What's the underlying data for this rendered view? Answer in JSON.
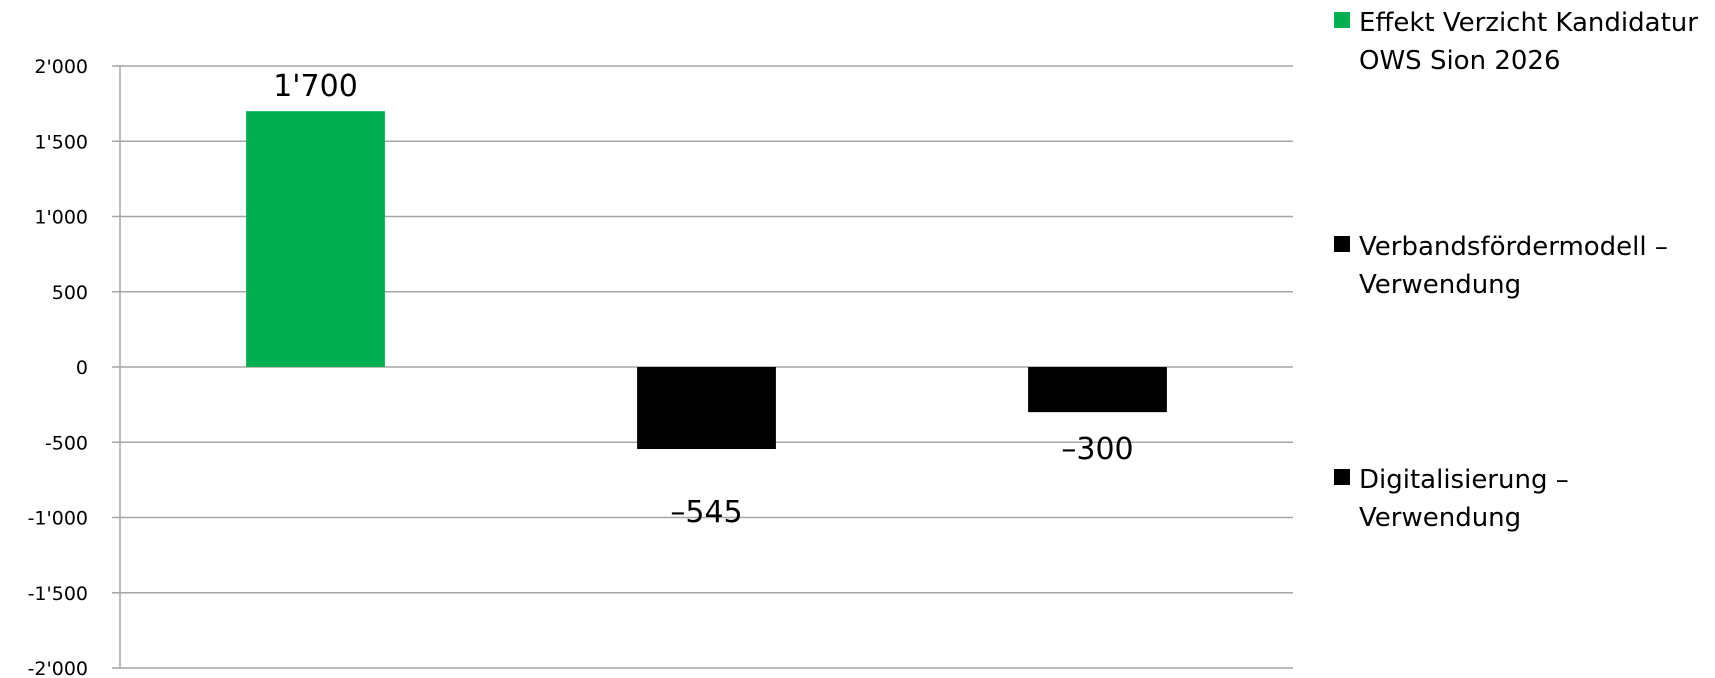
{
  "chart_data": {
    "type": "bar",
    "categories": [
      "",
      "",
      ""
    ],
    "series": [
      {
        "name": "Effekt Verzicht Kandidatur OWS Sion 2026",
        "color": "#00b050",
        "category_index": 0,
        "value": 1700,
        "label": "1'700"
      },
      {
        "name": "Verbandsfördermodell – Verwendung",
        "color": "#000000",
        "category_index": 1,
        "value": -545,
        "label": "–545"
      },
      {
        "name": "Digitalisierung – Verwendung",
        "color": "#000000",
        "category_index": 2,
        "value": -300,
        "label": "–300"
      }
    ],
    "ylim": [
      -2000,
      2000
    ],
    "yticks": [
      {
        "value": 2000,
        "label": "2'000"
      },
      {
        "value": 1500,
        "label": "1'500"
      },
      {
        "value": 1000,
        "label": "1'000"
      },
      {
        "value": 500,
        "label": "500"
      },
      {
        "value": 0,
        "label": "0"
      },
      {
        "value": -500,
        "label": "-500"
      },
      {
        "value": -1000,
        "label": "-1'000"
      },
      {
        "value": -1500,
        "label": "-1'500"
      },
      {
        "value": -2000,
        "label": "-2'000"
      }
    ],
    "grid": true,
    "gridColor": "#a6a6a6",
    "legend_position": "right",
    "title": "",
    "xlabel": "",
    "ylabel": ""
  },
  "legend": {
    "items": [
      {
        "label": "Effekt Verzicht Kandidatur OWS Sion 2026",
        "color": "#00b050"
      },
      {
        "label": "Verbandsfördermodell – Verwendung",
        "color": "#000000"
      },
      {
        "label": "Digitalisierung – Verwendung",
        "color": "#000000"
      }
    ]
  }
}
